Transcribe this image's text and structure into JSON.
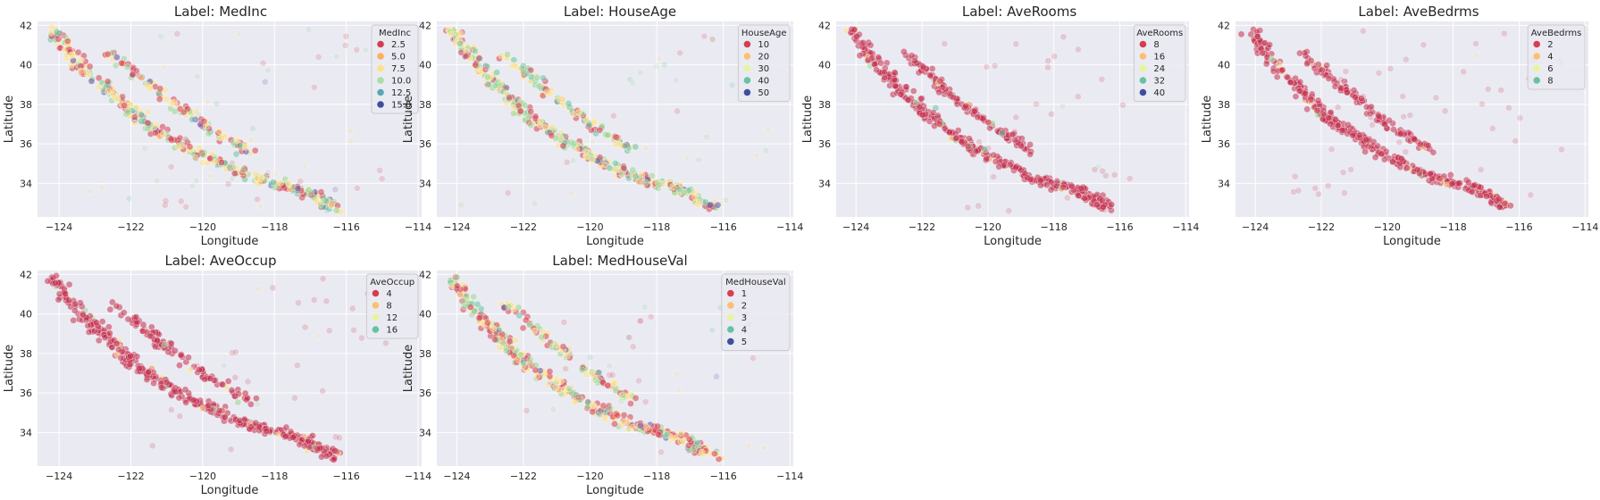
{
  "chart_data": [
    {
      "type": "scatter",
      "title": "Label: MedInc",
      "xlabel": "Longitude",
      "ylabel": "Latitude",
      "xlim": [
        -124.6,
        -113.9
      ],
      "ylim": [
        32.3,
        42.2
      ],
      "xticks": [
        "-124",
        "-122",
        "-120",
        "-118",
        "-116",
        "-114"
      ],
      "yticks": [
        "34",
        "36",
        "38",
        "40",
        "42"
      ],
      "grid": true,
      "legend": {
        "title": "MedInc",
        "position": "top-right",
        "entries": [
          "2.5",
          "5.0",
          "7.5",
          "10.0",
          "12.5",
          "15.0"
        ]
      },
      "hue_mix": [
        0.35,
        0.3,
        0.2,
        0.1,
        0.04,
        0.01
      ]
    },
    {
      "type": "scatter",
      "title": "Label: HouseAge",
      "xlabel": "Longitude",
      "ylabel": "Latitude",
      "xlim": [
        -124.6,
        -113.9
      ],
      "ylim": [
        32.3,
        42.2
      ],
      "xticks": [
        "-124",
        "-122",
        "-120",
        "-118",
        "-116",
        "-114"
      ],
      "yticks": [
        "34",
        "36",
        "38",
        "40",
        "42"
      ],
      "grid": true,
      "legend": {
        "title": "HouseAge",
        "position": "top-right",
        "entries": [
          "10",
          "20",
          "30",
          "40",
          "50"
        ]
      },
      "hue_mix": [
        0.25,
        0.3,
        0.25,
        0.15,
        0.05
      ]
    },
    {
      "type": "scatter",
      "title": "Label: AveRooms",
      "xlabel": "Longitude",
      "ylabel": "Latitude",
      "xlim": [
        -124.6,
        -113.9
      ],
      "ylim": [
        32.3,
        42.2
      ],
      "xticks": [
        "-124",
        "-122",
        "-120",
        "-118",
        "-116",
        "-114"
      ],
      "yticks": [
        "34",
        "36",
        "38",
        "40",
        "42"
      ],
      "grid": true,
      "legend": {
        "title": "AveRooms",
        "position": "top-right",
        "entries": [
          "8",
          "16",
          "24",
          "32",
          "40"
        ]
      },
      "hue_mix": [
        0.92,
        0.05,
        0.02,
        0.01,
        0.0
      ]
    },
    {
      "type": "scatter",
      "title": "Label: AveBedrms",
      "xlabel": "Longitude",
      "ylabel": "Latitude",
      "xlim": [
        -124.6,
        -113.9
      ],
      "ylim": [
        32.3,
        42.2
      ],
      "xticks": [
        "-124",
        "-122",
        "-120",
        "-118",
        "-116",
        "-114"
      ],
      "yticks": [
        "34",
        "36",
        "38",
        "40",
        "42"
      ],
      "grid": true,
      "legend": {
        "title": "AveBedrms",
        "position": "top-right",
        "entries": [
          "2",
          "4",
          "6",
          "8"
        ]
      },
      "hue_mix": [
        0.95,
        0.04,
        0.01,
        0.0
      ]
    },
    {
      "type": "scatter",
      "title": "Label: AveOccup",
      "xlabel": "Longitude",
      "ylabel": "Latitude",
      "xlim": [
        -124.6,
        -113.9
      ],
      "ylim": [
        32.3,
        42.2
      ],
      "xticks": [
        "-124",
        "-122",
        "-120",
        "-118",
        "-116",
        "-114"
      ],
      "yticks": [
        "34",
        "36",
        "38",
        "40",
        "42"
      ],
      "grid": true,
      "legend": {
        "title": "AveOccup",
        "position": "top-right",
        "entries": [
          "4",
          "8",
          "12",
          "16"
        ]
      },
      "hue_mix": [
        0.93,
        0.05,
        0.02,
        0.0
      ]
    },
    {
      "type": "scatter",
      "title": "Label: MedHouseVal",
      "xlabel": "Longitude",
      "ylabel": "Latitude",
      "xlim": [
        -124.6,
        -113.9
      ],
      "ylim": [
        32.3,
        42.2
      ],
      "xticks": [
        "-124",
        "-122",
        "-120",
        "-118",
        "-116",
        "-114"
      ],
      "yticks": [
        "34",
        "36",
        "38",
        "40",
        "42"
      ],
      "grid": true,
      "legend": {
        "title": "MedHouseVal",
        "position": "top-right",
        "entries": [
          "1",
          "2",
          "3",
          "4",
          "5"
        ]
      },
      "hue_mix": [
        0.4,
        0.3,
        0.18,
        0.09,
        0.03
      ]
    }
  ],
  "colors": {
    "palette_Spectral": [
      "#d53e4f",
      "#fc8d59",
      "#fee08b",
      "#e6f598",
      "#99d594",
      "#66c2a5",
      "#3288bd",
      "#5e4fa2"
    ],
    "crimson_dense": "#c2304f",
    "gridline": "#ffffff",
    "axes_background": "#eaeaf2"
  }
}
